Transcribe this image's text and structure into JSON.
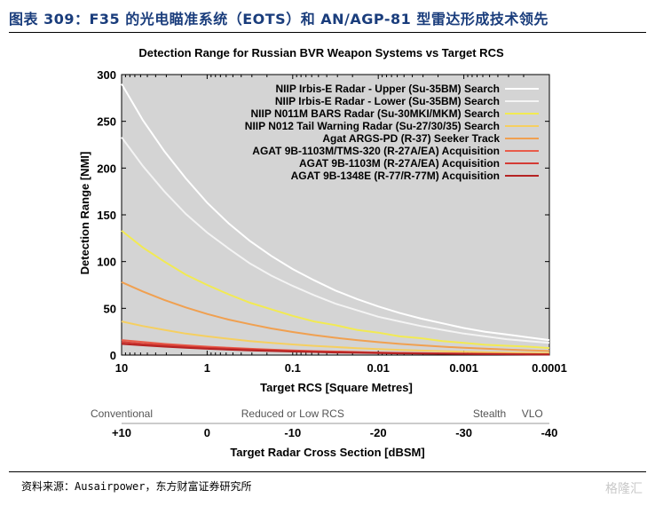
{
  "header": {
    "figure_title": "图表 309：F35 的光电瞄准系统（EOTS）和 AN/AGP-81 型雷达形成技术领先"
  },
  "footer": {
    "source": "资料来源：Ausairpower，东方财富证券研究所",
    "watermark": "格隆汇"
  },
  "chart_data": {
    "type": "line",
    "title": "Detection Range for Russian BVR Weapon Systems vs Target RCS",
    "xlabel": "Target RCS [Square Metres]",
    "ylabel": "Detection Range [NMI]",
    "x_scale": "log-reversed",
    "x_ticks": [
      10,
      1,
      0.1,
      0.01,
      0.001,
      0.0001
    ],
    "x_tick_labels": [
      "10",
      "1",
      "0.1",
      "0.01",
      "0.001",
      "0.0001"
    ],
    "xlim": [
      10,
      0.0001
    ],
    "ylim": [
      0,
      300
    ],
    "y_ticks": [
      0,
      50,
      100,
      150,
      200,
      250,
      300
    ],
    "grid": false,
    "background": "#d4d4d4",
    "legend_position": "top-right",
    "x": [
      10,
      5.62,
      3.16,
      1.78,
      1,
      0.562,
      0.316,
      0.178,
      0.1,
      0.0562,
      0.0316,
      0.0178,
      0.01,
      0.00562,
      0.00316,
      0.00178,
      0.001,
      0.000562,
      0.000316,
      0.000178,
      0.0001
    ],
    "series": [
      {
        "name": "NIIP Irbis-E Radar - Upper (Su-35BM) Search",
        "color": "#ffffff",
        "values": [
          290,
          251,
          218,
          189,
          163,
          141,
          122,
          106,
          92,
          80,
          69,
          60,
          52,
          45,
          39,
          34,
          29,
          25,
          22,
          19,
          16
        ]
      },
      {
        "name": "NIIP Irbis-E Radar - Lower (Su-35BM) Search",
        "color": "#f4f4f4",
        "values": [
          233,
          202,
          175,
          151,
          131,
          114,
          98,
          85,
          74,
          64,
          55,
          48,
          41,
          36,
          31,
          27,
          23,
          20,
          17,
          15,
          13
        ]
      },
      {
        "name": "NIIP N011M BARS Radar (Su-30MKI/MKM) Search",
        "color": "#f2ea52",
        "values": [
          133,
          115,
          100,
          86,
          75,
          65,
          56,
          49,
          42,
          36,
          32,
          27,
          24,
          20,
          18,
          15,
          13,
          11,
          10,
          9,
          7.5
        ]
      },
      {
        "name": "NIIP N012 Tail Warning Radar (Su-27/30/35) Search",
        "color": "#f5cf60",
        "values": [
          36,
          31,
          27,
          23,
          20,
          17.5,
          15,
          13,
          11.4,
          9.9,
          8.6,
          7.4,
          6.4,
          5.6,
          4.8,
          4.2,
          3.6,
          3.1,
          2.7,
          2.3,
          2
        ]
      },
      {
        "name": "Agat ARGS-PD (R-37) Seeker Track",
        "color": "#f0a050",
        "values": [
          78,
          68,
          59,
          51,
          44,
          38,
          33,
          28.5,
          24.7,
          21.4,
          18.5,
          16,
          13.9,
          12,
          10.4,
          9,
          7.8,
          6.8,
          5.9,
          5.1,
          4.4
        ]
      },
      {
        "name": "AGAT 9B-1103M/TMS-320 (R-27A/EA) Acquisition",
        "color": "#e85c4a",
        "values": [
          16,
          14,
          12,
          10.4,
          9,
          7.8,
          6.7,
          5.8,
          5,
          4.3,
          3.8,
          3.3,
          2.8,
          2.4,
          2.1,
          1.8,
          1.6,
          1.4,
          1.2,
          1,
          0.9
        ]
      },
      {
        "name": "AGAT 9B-1103M (R-27A/EA) Acquisition",
        "color": "#d43b34",
        "values": [
          14,
          12,
          10.5,
          9.1,
          7.9,
          6.8,
          5.9,
          5.1,
          4.4,
          3.8,
          3.3,
          2.9,
          2.5,
          2.1,
          1.8,
          1.6,
          1.4,
          1.2,
          1,
          0.9,
          0.8
        ]
      },
      {
        "name": "AGAT 9B-1348E (R-77/R-77M) Acquisition",
        "color": "#b52323",
        "values": [
          12,
          10.4,
          9,
          7.8,
          6.7,
          5.8,
          5,
          4.4,
          3.8,
          3.3,
          2.8,
          2.5,
          2.1,
          1.8,
          1.6,
          1.4,
          1.2,
          1,
          0.9,
          0.8,
          0.7
        ]
      }
    ],
    "secondary_axis": {
      "label": "Target Radar Cross Section [dBSM]",
      "tick_labels": [
        "+10",
        "0",
        "-10",
        "-20",
        "-30",
        "-40"
      ],
      "categories": [
        {
          "label": "Conventional",
          "at_dbsm": 10
        },
        {
          "label": "Reduced or Low RCS",
          "at_dbsm": -10
        },
        {
          "label": "Stealth",
          "at_dbsm": -33
        },
        {
          "label": "VLO",
          "at_dbsm": -38
        }
      ]
    }
  }
}
